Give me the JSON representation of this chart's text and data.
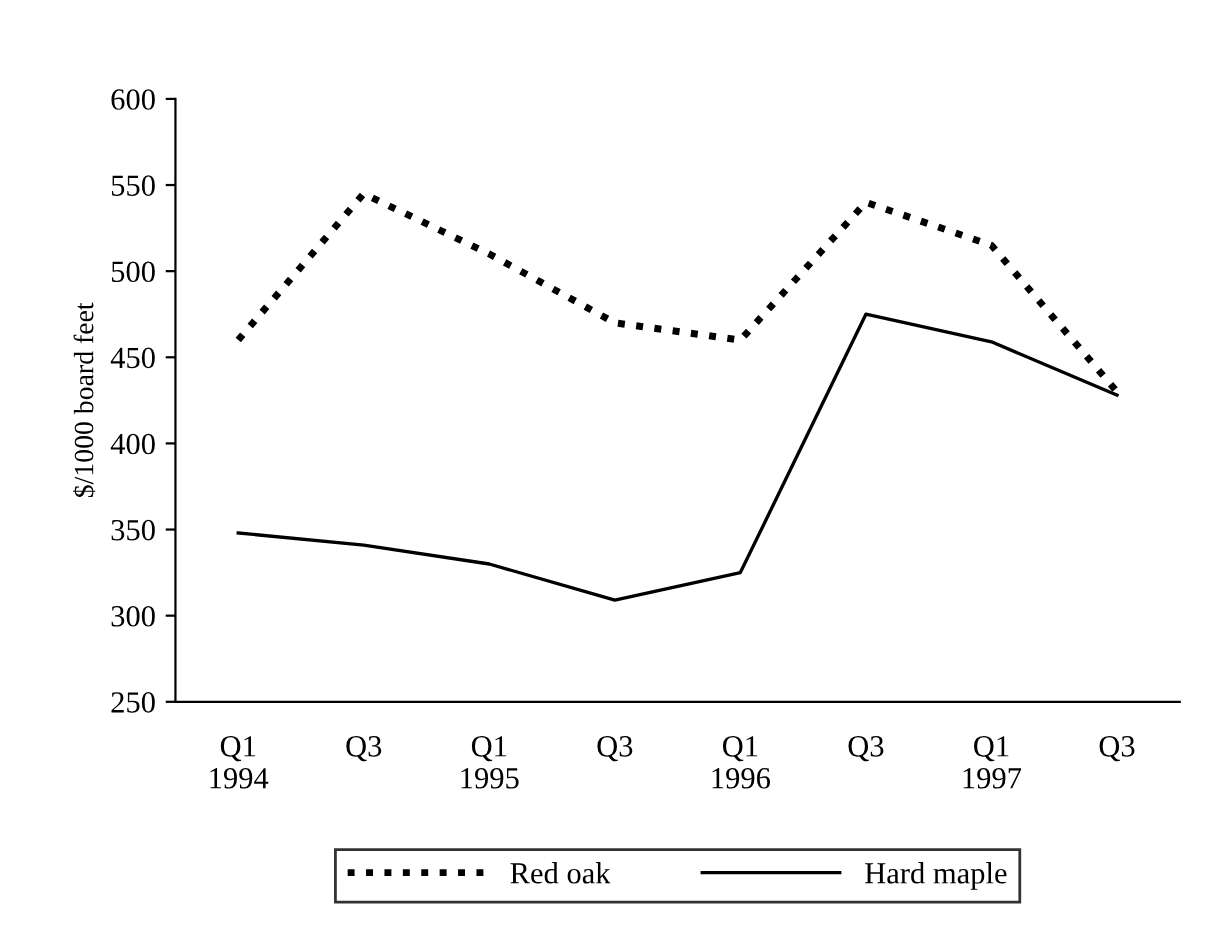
{
  "chart_data": {
    "type": "line",
    "ylabel": "$/1000 board feet",
    "categories": [
      "Q1\n1994",
      "Q3",
      "Q1\n1995",
      "Q3",
      "Q1\n1996",
      "Q3",
      "Q1\n1997",
      "Q3"
    ],
    "series": [
      {
        "name": "Red oak",
        "color": "#000000",
        "line_style": "dotted",
        "values": [
          460,
          545,
          510,
          470,
          460,
          540,
          515,
          430
        ]
      },
      {
        "name": "Hard maple",
        "color": "#000000",
        "line_style": "solid",
        "values": [
          348,
          341,
          330,
          309,
          325,
          475,
          459,
          428
        ]
      }
    ],
    "ylim": [
      250,
      600
    ],
    "yticks": [
      250,
      300,
      350,
      400,
      450,
      500,
      550,
      600
    ],
    "grid": false,
    "legend": "bottom",
    "marker": "none"
  }
}
